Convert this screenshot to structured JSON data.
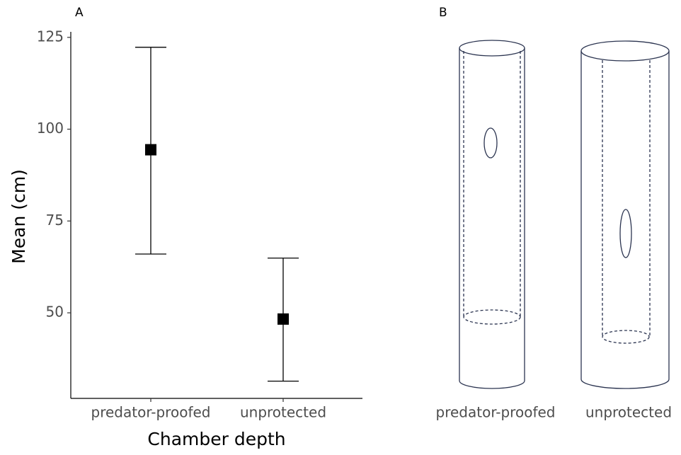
{
  "chart_data": {
    "type": "errorpoint",
    "panel_label": "A",
    "x_label": "Chamber depth",
    "y_label": "Mean (cm)",
    "categories": [
      "predator-proofed",
      "unprotected"
    ],
    "values": [
      94.4,
      48.3
    ],
    "lower": [
      66.0,
      31.4
    ],
    "upper": [
      122.3,
      64.9
    ],
    "color": "#000000",
    "ylim": [
      26.7,
      126.5
    ],
    "yticks": [
      50,
      75,
      100,
      125
    ]
  },
  "diagram": {
    "panel_label": "B",
    "labels": [
      "predator-proofed",
      "unprotected"
    ]
  }
}
